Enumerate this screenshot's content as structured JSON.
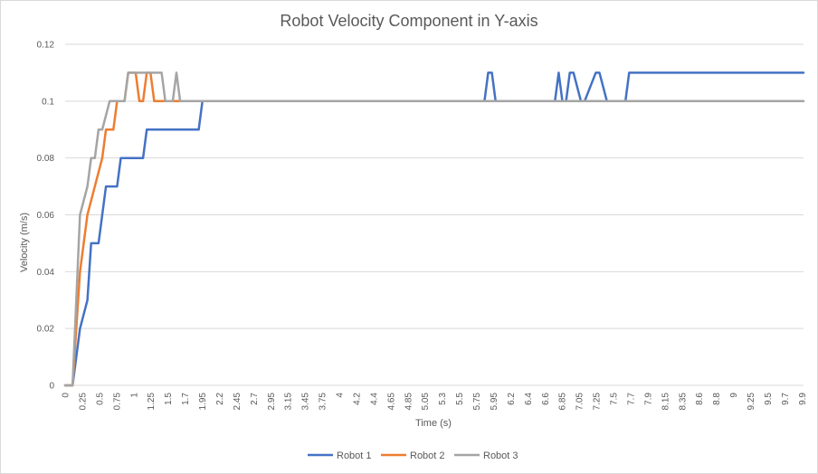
{
  "chart_data": {
    "type": "line",
    "title": "Robot Velocity Component in Y-axis",
    "xlabel": "Time (s)",
    "ylabel": "Velocity (m/s)",
    "ylim": [
      0,
      0.12
    ],
    "yticks": [
      "0",
      "0.02",
      "0.04",
      "0.06",
      "0.08",
      "0.1",
      "0.12"
    ],
    "xlim": [
      0,
      9.95
    ],
    "xticks": [
      "0",
      "0.25",
      "0.5",
      "0.75",
      "1",
      "1.25",
      "1.5",
      "1.7",
      "1.95",
      "2.2",
      "2.45",
      "2.7",
      "2.95",
      "3.15",
      "3.45",
      "3.75",
      "4",
      "4.2",
      "4.4",
      "4.65",
      "4.85",
      "5.05",
      "5.3",
      "5.5",
      "5.75",
      "5.95",
      "6.2",
      "6.4",
      "6.6",
      "6.85",
      "7.05",
      "7.25",
      "7.5",
      "7.7",
      "7.9",
      "8.15",
      "8.35",
      "8.6",
      "8.8",
      "9",
      "9.25",
      "9.5",
      "9.7",
      "9.9"
    ],
    "grid": true,
    "legend_position": "bottom",
    "series": [
      {
        "name": "Robot 1",
        "color": "#4472C4",
        "x": [
          0,
          0.1,
          0.2,
          0.3,
          0.35,
          0.45,
          0.5,
          0.55,
          0.7,
          0.75,
          0.8,
          1.05,
          1.1,
          1.8,
          1.85,
          5.65,
          5.7,
          5.75,
          5.8,
          6.6,
          6.65,
          6.7,
          6.75,
          6.8,
          6.85,
          6.95,
          7.0,
          7.15,
          7.2,
          7.3,
          7.35,
          7.55,
          7.6,
          7.65,
          9.95
        ],
        "values": [
          0,
          0,
          0.02,
          0.03,
          0.05,
          0.05,
          0.06,
          0.07,
          0.07,
          0.08,
          0.08,
          0.08,
          0.09,
          0.09,
          0.1,
          0.1,
          0.11,
          0.11,
          0.1,
          0.1,
          0.11,
          0.1,
          0.1,
          0.11,
          0.11,
          0.1,
          0.1,
          0.11,
          0.11,
          0.1,
          0.1,
          0.1,
          0.11,
          0.11,
          0.11
        ]
      },
      {
        "name": "Robot 2",
        "color": "#ED7D31",
        "x": [
          0,
          0.1,
          0.2,
          0.3,
          0.4,
          0.5,
          0.55,
          0.65,
          0.7,
          0.75,
          0.8,
          0.85,
          0.9,
          0.95,
          1.0,
          1.05,
          1.1,
          1.15,
          1.2,
          1.25,
          1.3,
          1.35,
          1.4,
          1.45,
          1.5,
          1.55,
          1.6,
          1.65,
          8.15
        ],
        "values": [
          0,
          0,
          0.04,
          0.06,
          0.07,
          0.08,
          0.09,
          0.09,
          0.1,
          0.1,
          0.1,
          0.11,
          0.11,
          0.11,
          0.1,
          0.1,
          0.11,
          0.11,
          0.1,
          0.1,
          0.1,
          0.1,
          0.1,
          0.1,
          0.1,
          0.1,
          0.1,
          0.1,
          0.1
        ]
      },
      {
        "name": "Robot 3",
        "color": "#A5A5A5",
        "x": [
          0,
          0.1,
          0.2,
          0.3,
          0.35,
          0.4,
          0.45,
          0.5,
          0.6,
          0.65,
          0.7,
          0.8,
          0.85,
          0.9,
          1.0,
          1.1,
          1.2,
          1.3,
          1.35,
          1.4,
          1.45,
          1.5,
          1.55,
          1.6,
          9.95
        ],
        "values": [
          0,
          0,
          0.06,
          0.07,
          0.08,
          0.08,
          0.09,
          0.09,
          0.1,
          0.1,
          0.1,
          0.1,
          0.11,
          0.11,
          0.11,
          0.11,
          0.11,
          0.11,
          0.1,
          0.1,
          0.1,
          0.11,
          0.1,
          0.1,
          0.1
        ]
      }
    ]
  }
}
